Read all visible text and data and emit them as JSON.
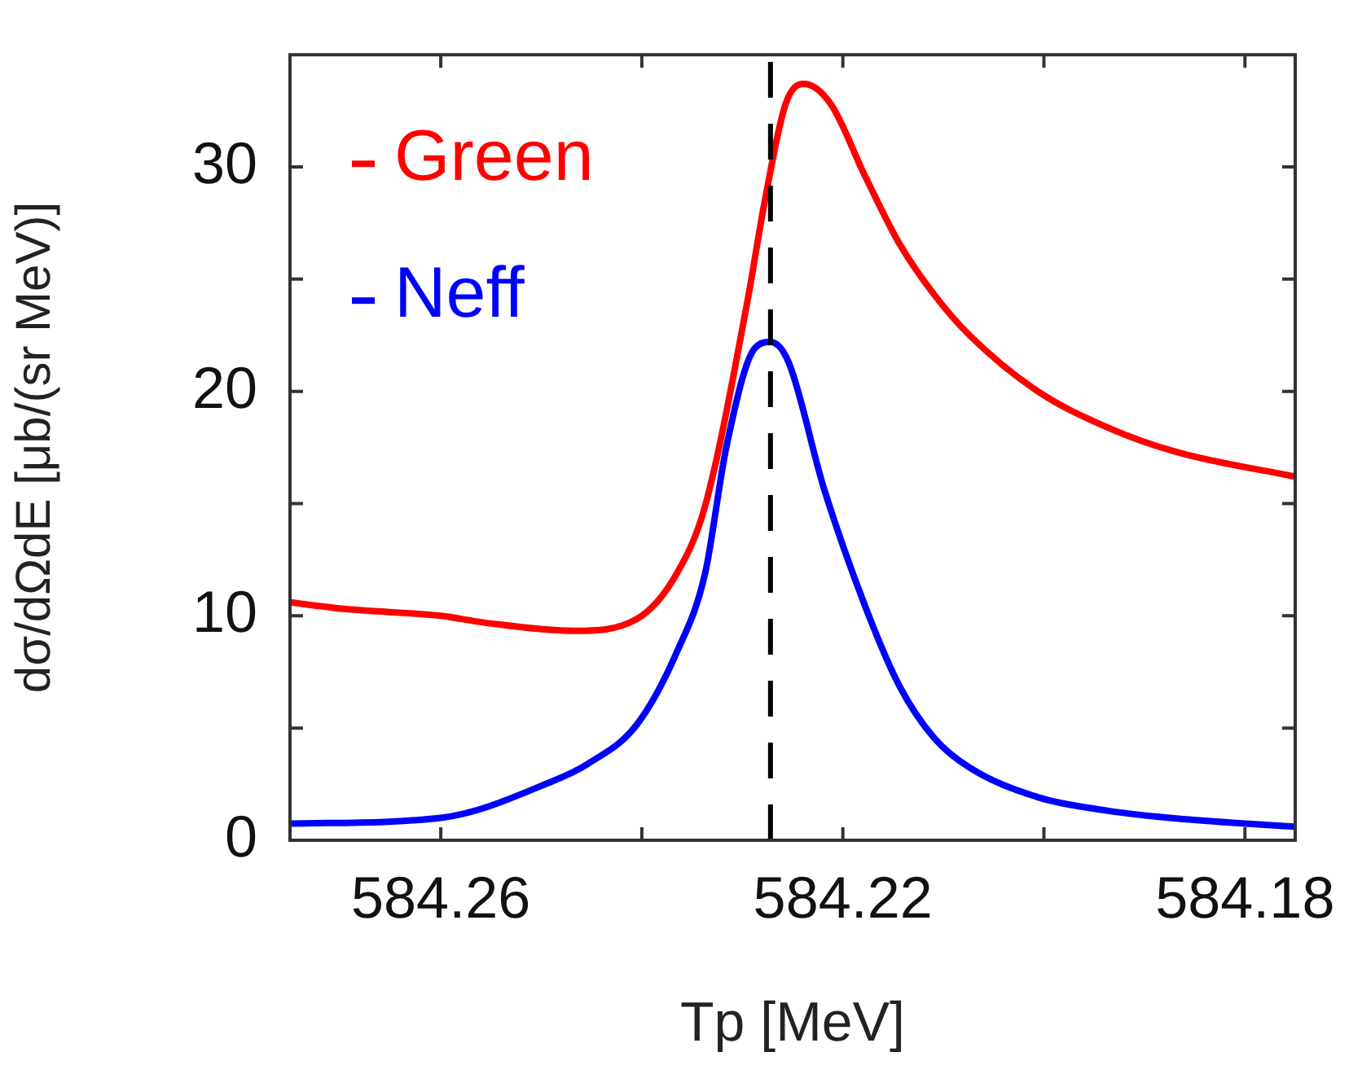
{
  "chart_data": {
    "type": "line",
    "xlabel": "Tp [MeV]",
    "ylabel": "dσ/dΩdE [μb/(sr MeV)]",
    "xlim": [
      584.275,
      584.175
    ],
    "ylim": [
      0,
      35
    ],
    "xticks": [
      584.26,
      {
        "value": 584.24,
        "label": null
      },
      584.22,
      {
        "value": 584.2,
        "label": null
      },
      584.18
    ],
    "yticks": [
      0,
      {
        "value": 5,
        "label": null
      },
      10,
      {
        "value": 15,
        "label": null
      },
      20,
      {
        "value": 25,
        "label": null
      },
      30
    ],
    "grid": false,
    "legend": "top left",
    "marker": "none",
    "line_style": "solid",
    "ref_lines": [
      {
        "axis": "x",
        "value": 584.2272,
        "color": "#000000",
        "line_style": "dashed"
      }
    ],
    "series": [
      {
        "name": "Green",
        "color": "#ff0000",
        "x": [
          584.275,
          584.2694,
          584.26,
          584.2557,
          584.2467,
          584.2405,
          584.2365,
          584.2337,
          584.2295,
          584.2278,
          584.2257,
          584.2239,
          584.2212,
          584.2178,
          584.2144,
          584.2109,
          584.2074,
          584.2006,
          584.1937,
          584.1868,
          584.175
        ],
        "values": [
          10.6,
          10.3,
          10.0,
          9.7,
          9.33,
          9.86,
          11.9,
          14.9,
          24.0,
          28.4,
          32.8,
          33.7,
          32.8,
          29.6,
          26.6,
          24.3,
          22.5,
          20.0,
          18.4,
          17.3,
          16.2
        ]
      },
      {
        "name": "Neff",
        "color": "#0000ff",
        "x": [
          584.275,
          584.26,
          584.2488,
          584.2454,
          584.2405,
          584.2365,
          584.2337,
          584.2316,
          584.2288,
          584.2272,
          584.2254,
          584.2219,
          584.2178,
          584.2144,
          584.2109,
          584.2074,
          584.2006,
          584.1937,
          584.1868,
          584.175
        ],
        "values": [
          0.74,
          1.0,
          2.65,
          3.4,
          5.15,
          8.4,
          11.9,
          17.5,
          21.9,
          22.2,
          21.3,
          15.7,
          10.45,
          6.9,
          4.55,
          3.24,
          1.92,
          1.32,
          0.97,
          0.6
        ]
      }
    ]
  }
}
